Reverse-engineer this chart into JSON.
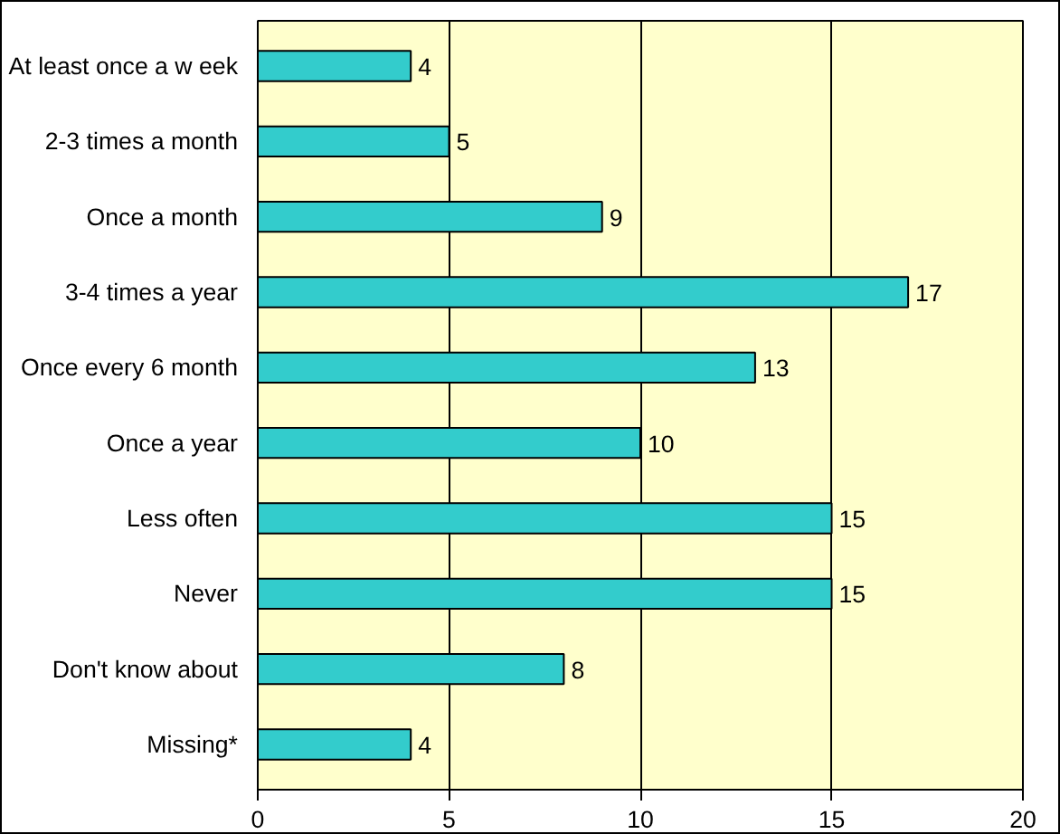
{
  "chart_data": {
    "type": "bar",
    "orientation": "horizontal",
    "categories": [
      "At least once a w eek",
      "2-3 times a month",
      "Once a month",
      "3-4 times a year",
      "Once every 6 month",
      "Once a year",
      "Less often",
      "Never",
      "Don't know about",
      "Missing*"
    ],
    "values": [
      4,
      5,
      9,
      17,
      13,
      10,
      15,
      15,
      8,
      4
    ],
    "color": "#33cccc",
    "xlim": [
      0,
      20
    ],
    "xticks": [
      0,
      5,
      10,
      15,
      20
    ],
    "grid": "x",
    "data_labels": true
  }
}
